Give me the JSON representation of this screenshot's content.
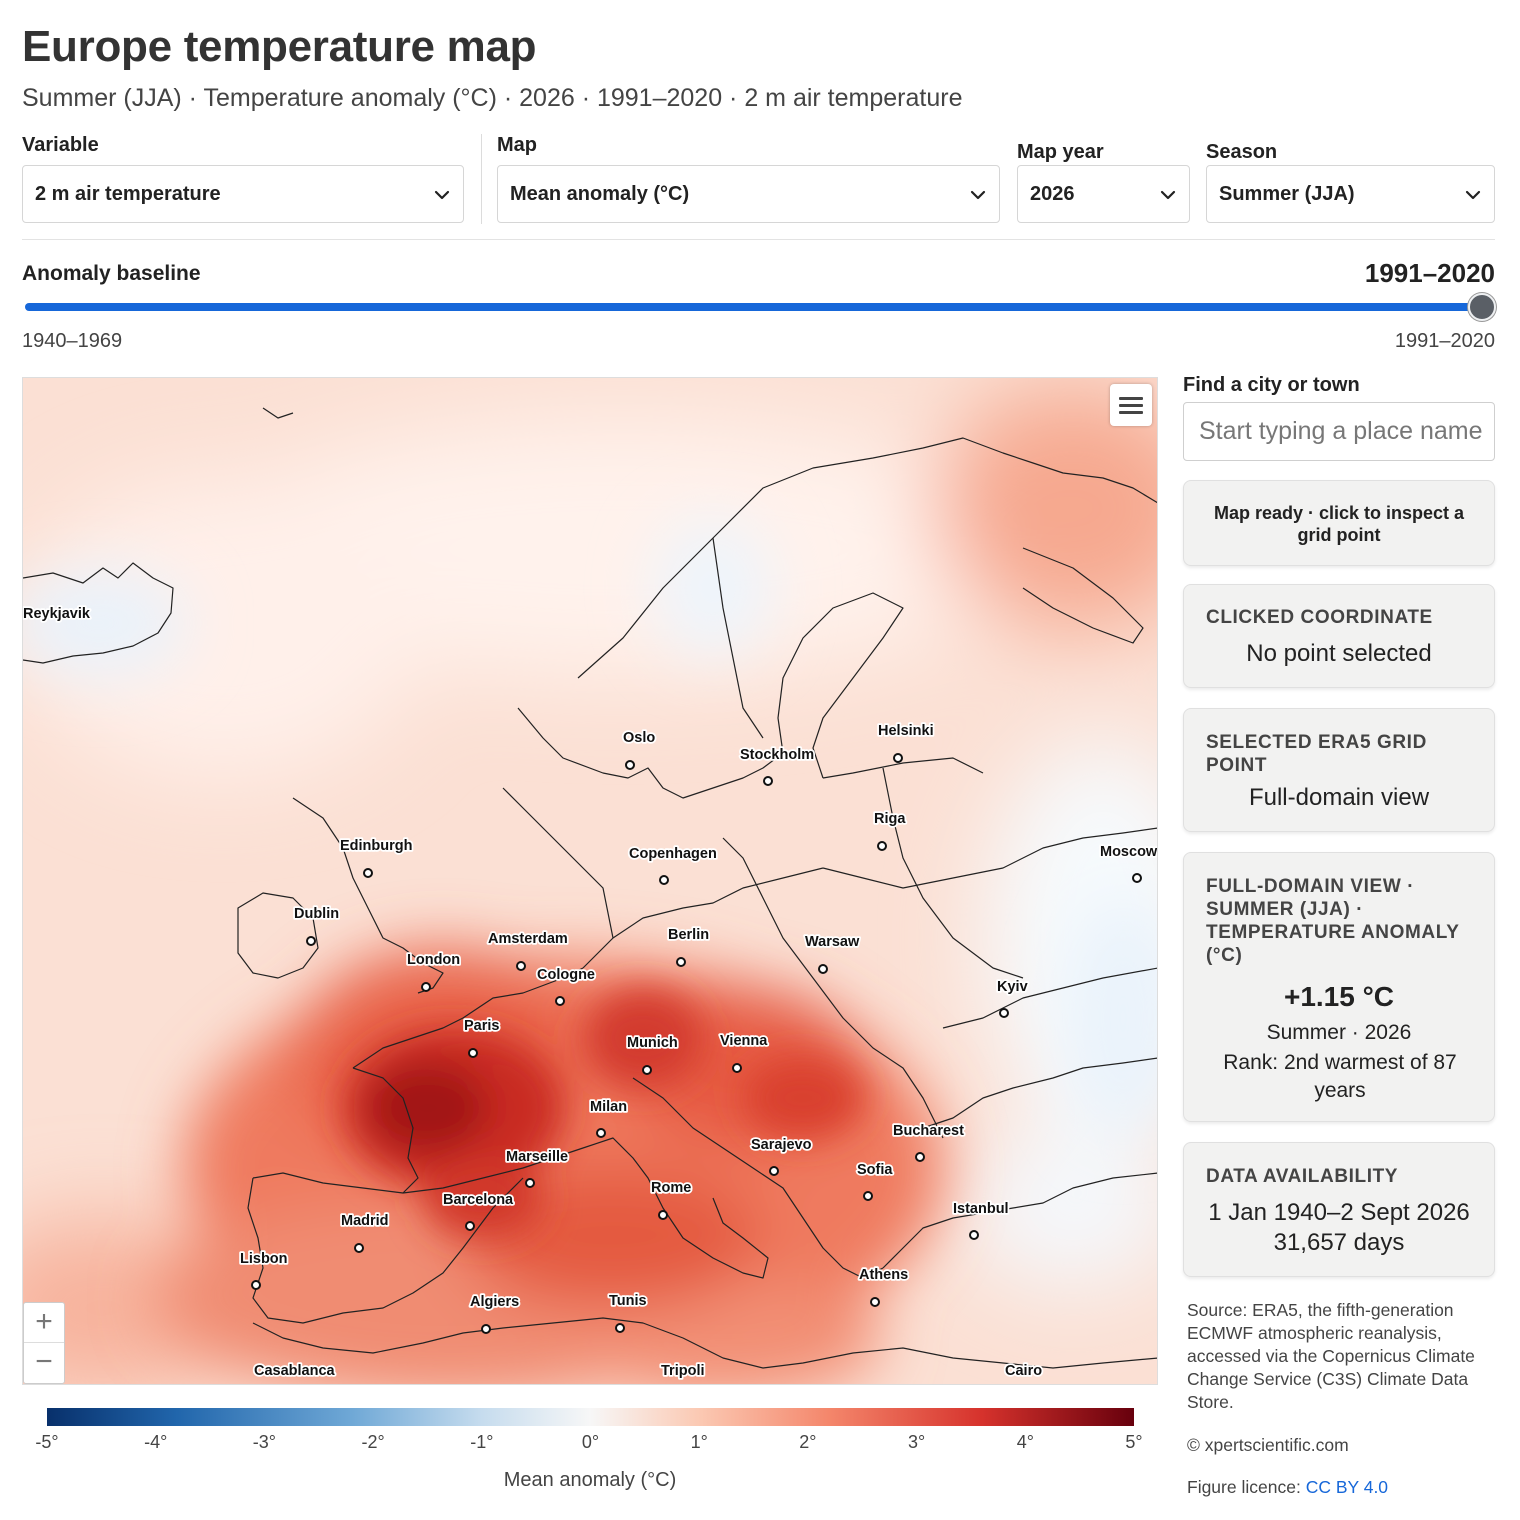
{
  "title": "Europe temperature map",
  "subtitle": "Summer (JJA) · Temperature anomaly (°C) · 2026 · 1991–2020 · 2 m air temperature",
  "controls": {
    "variable_label": "Variable",
    "variable_value": "2 m air temperature",
    "map_label": "Map",
    "map_value": "Mean anomaly (°C)",
    "year_label": "Map year",
    "year_value": "2026",
    "season_label": "Season",
    "season_value": "Summer (JJA)"
  },
  "baseline": {
    "label": "Anomaly baseline",
    "value": "1991–2020",
    "min_label": "1940–1969",
    "max_label": "1991–2020",
    "position_fraction": 1.0
  },
  "map": {
    "zoom_in": "+",
    "zoom_out": "−",
    "cities": [
      "Reykjavik",
      "Oslo",
      "Stockholm",
      "Helsinki",
      "Riga",
      "Moscow",
      "Edinburgh",
      "Copenhagen",
      "Dublin",
      "Amsterdam",
      "Berlin",
      "Warsaw",
      "London",
      "Cologne",
      "Kyiv",
      "Paris",
      "Munich",
      "Vienna",
      "Milan",
      "Bucharest",
      "Sarajevo",
      "Marseille",
      "Sofia",
      "Rome",
      "Barcelona",
      "Istanbul",
      "Madrid",
      "Lisbon",
      "Athens",
      "Algiers",
      "Tunis",
      "Casablanca",
      "Tripoli",
      "Cairo"
    ]
  },
  "colorbar": {
    "ticks": [
      "-5°",
      "-4°",
      "-3°",
      "-2°",
      "-1°",
      "0°",
      "1°",
      "2°",
      "3°",
      "4°",
      "5°"
    ],
    "title": "Mean anomaly (°C)",
    "colors": [
      "#08306b",
      "#2166ac",
      "#6fa8d6",
      "#c6dcee",
      "#f7f7f7",
      "#fbc9b3",
      "#f4866b",
      "#d6322c",
      "#67000d"
    ]
  },
  "sidebar": {
    "find_label": "Find a city or town",
    "find_placeholder": "Start typing a place name",
    "status": "Map ready · click to inspect a grid point",
    "clicked_head": "Clicked coordinate",
    "clicked_value": "No point selected",
    "grid_head": "Selected ERA5 grid point",
    "grid_value": "Full-domain view",
    "summary_head": "Full-domain view · Summer (JJA) · Temperature anomaly (°C)",
    "summary_value": "+1.15 °C",
    "summary_season": "Summer · 2026",
    "summary_rank": "Rank: 2nd warmest of 87 years",
    "availability_head": "Data availability",
    "availability_range": "1 Jan 1940–2 Sept 2026",
    "availability_days": "31,657 days",
    "source": "Source: ERA5, the fifth-generation ECMWF atmospheric reanalysis, accessed via the Copernicus Climate Change Service (C3S) Climate Data Store.",
    "copyright": "© xpertscientific.com",
    "licence_prefix": "Figure licence:",
    "licence_link": "CC BY 4.0"
  }
}
